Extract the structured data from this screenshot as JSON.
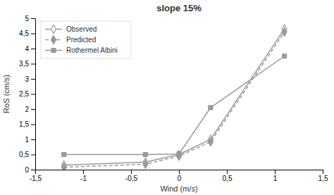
{
  "chart_data": {
    "type": "line",
    "title": "slope 15%",
    "xlabel": "Wind (m/s)",
    "ylabel": "RoS (cm/s)",
    "x": [
      -1.2,
      -0.35,
      0.0,
      0.33,
      1.1
    ],
    "series": [
      {
        "name": "Observed",
        "color": "#999999",
        "marker": "open-diamond",
        "line_style": "solid",
        "values": [
          0.15,
          0.25,
          0.5,
          1.0,
          4.65
        ]
      },
      {
        "name": "Predicted",
        "color": "#999999",
        "marker": "diamond",
        "line_style": "dashed",
        "values": [
          0.08,
          0.18,
          0.45,
          0.92,
          4.55
        ]
      },
      {
        "name": "Rothermel Albini",
        "color": "#999999",
        "marker": "square",
        "line_style": "solid",
        "values": [
          0.5,
          0.5,
          0.52,
          2.05,
          3.75
        ]
      }
    ],
    "xlim": [
      -1.5,
      1.5
    ],
    "ylim": [
      0,
      5
    ],
    "xticks": [
      {
        "value": -1.5,
        "label": "-1,5"
      },
      -1,
      {
        "value": -0.5,
        "label": "-0,5"
      },
      0,
      {
        "value": 0.5,
        "label": "0,5"
      },
      1,
      {
        "value": 1.5,
        "label": "1,5"
      }
    ],
    "yticks": [
      0,
      {
        "value": 0.5,
        "label": "0,5"
      },
      1,
      {
        "value": 1.5,
        "label": "1,5"
      },
      2,
      {
        "value": 2.5,
        "label": "2,5"
      },
      3,
      {
        "value": 3.5,
        "label": "3,5"
      },
      4,
      {
        "value": 4.5,
        "label": "4,5"
      },
      5
    ],
    "legend": "upper left",
    "grid": false
  }
}
